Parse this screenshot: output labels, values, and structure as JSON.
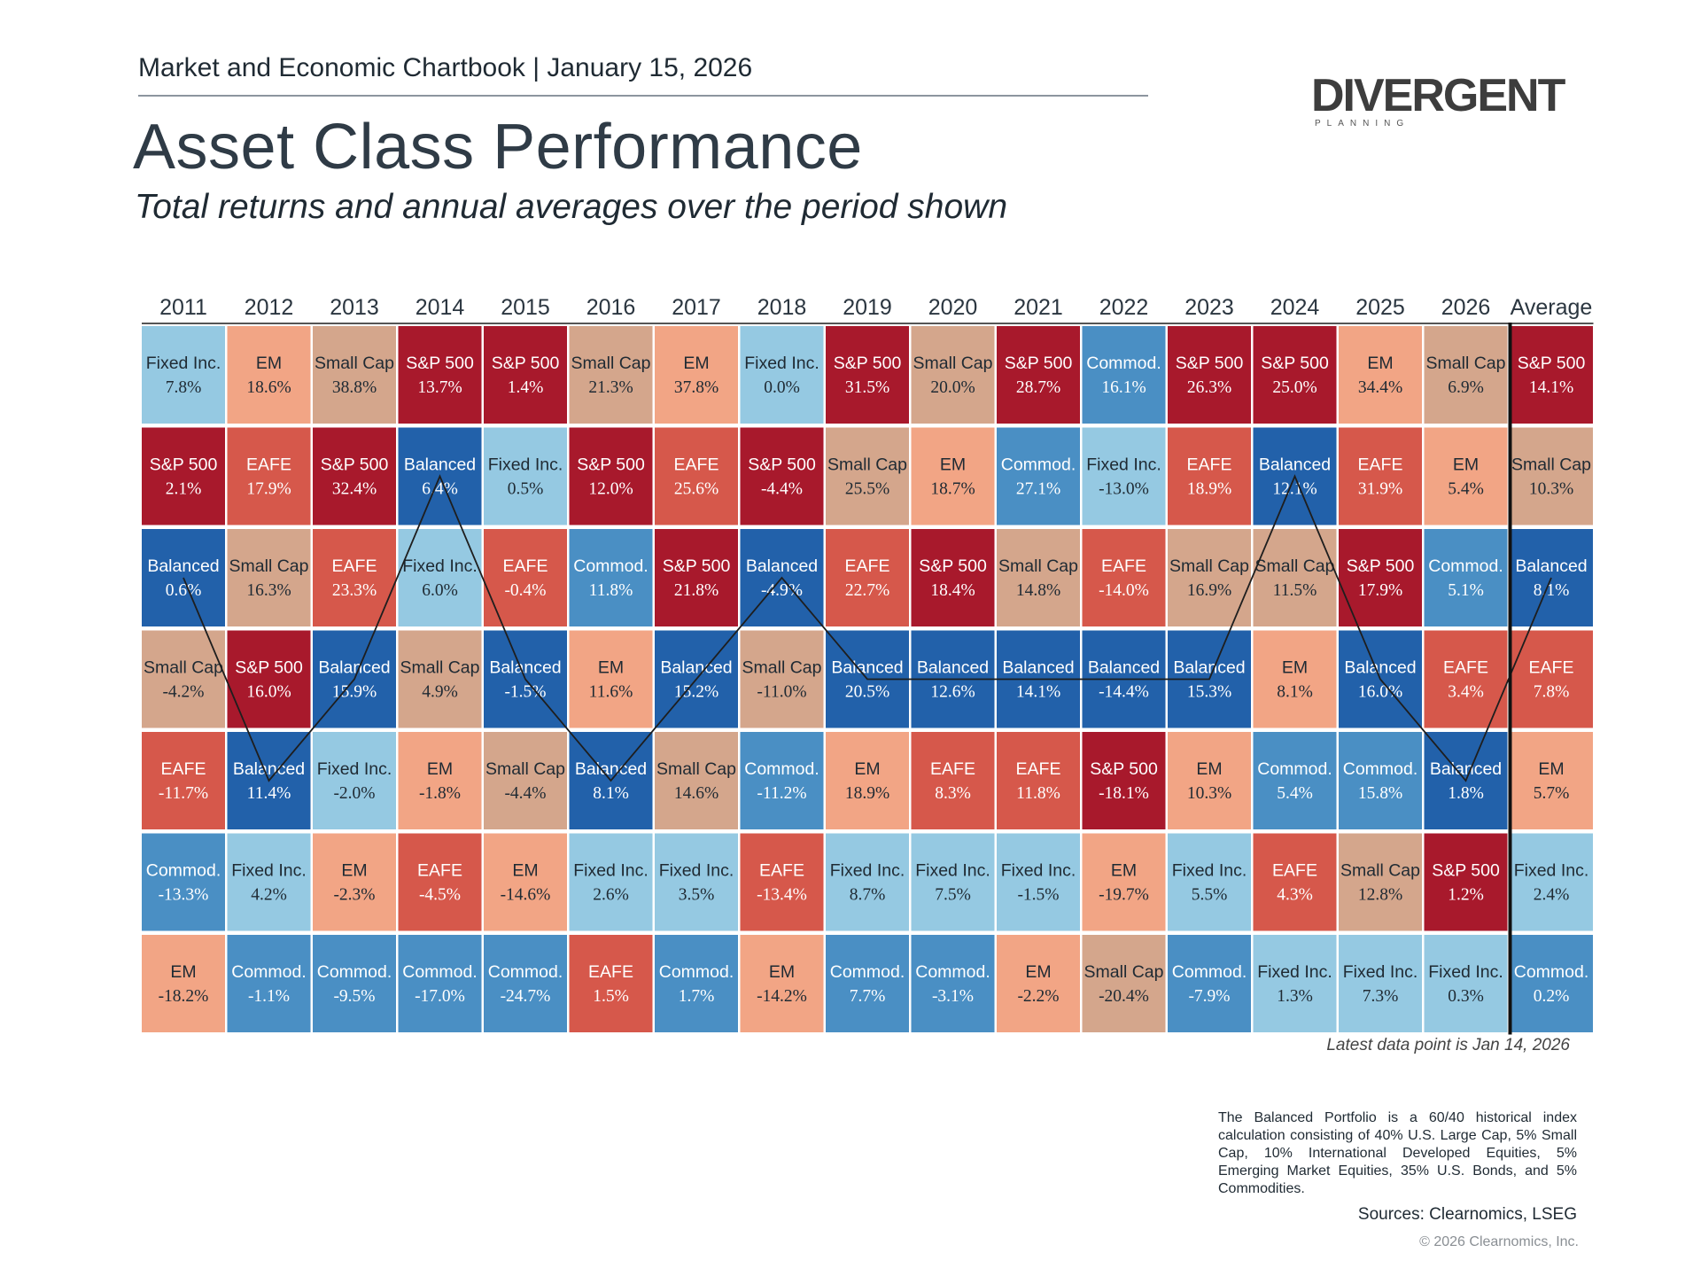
{
  "header": {
    "chartbook": "Market and Economic Chartbook | January 15, 2026",
    "title": "Asset Class Performance",
    "subtitle": "Total returns and annual averages over the period shown"
  },
  "logo": {
    "brand": "DIVERGENT",
    "tagline": "PLANNING"
  },
  "colors": {
    "S&P 500": "#a8192c",
    "EAFE": "#d6584b",
    "EM": "#f2a585",
    "Small Cap": "#d4a68c",
    "Fixed Inc.": "#95c9e2",
    "Commod.": "#4a8fc4",
    "Balanced": "#2261aa"
  },
  "chart_data": {
    "type": "table",
    "title": "Asset Class Performance",
    "columns": [
      "2011",
      "2012",
      "2013",
      "2014",
      "2015",
      "2016",
      "2017",
      "2018",
      "2019",
      "2020",
      "2021",
      "2022",
      "2023",
      "2024",
      "2025",
      "2026",
      "Average"
    ],
    "rows": [
      [
        [
          "Fixed Inc.",
          "7.8%"
        ],
        [
          "EM",
          "18.6%"
        ],
        [
          "Small Cap",
          "38.8%"
        ],
        [
          "S&P 500",
          "13.7%"
        ],
        [
          "S&P 500",
          "1.4%"
        ],
        [
          "Small Cap",
          "21.3%"
        ],
        [
          "EM",
          "37.8%"
        ],
        [
          "Fixed Inc.",
          "0.0%"
        ],
        [
          "S&P 500",
          "31.5%"
        ],
        [
          "Small Cap",
          "20.0%"
        ],
        [
          "S&P 500",
          "28.7%"
        ],
        [
          "Commod.",
          "16.1%"
        ],
        [
          "S&P 500",
          "26.3%"
        ],
        [
          "S&P 500",
          "25.0%"
        ],
        [
          "EM",
          "34.4%"
        ],
        [
          "Small Cap",
          "6.9%"
        ],
        [
          "S&P 500",
          "14.1%"
        ]
      ],
      [
        [
          "S&P 500",
          "2.1%"
        ],
        [
          "EAFE",
          "17.9%"
        ],
        [
          "S&P 500",
          "32.4%"
        ],
        [
          "Balanced",
          "6.4%"
        ],
        [
          "Fixed Inc.",
          "0.5%"
        ],
        [
          "S&P 500",
          "12.0%"
        ],
        [
          "EAFE",
          "25.6%"
        ],
        [
          "S&P 500",
          "-4.4%"
        ],
        [
          "Small Cap",
          "25.5%"
        ],
        [
          "EM",
          "18.7%"
        ],
        [
          "Commod.",
          "27.1%"
        ],
        [
          "Fixed Inc.",
          "-13.0%"
        ],
        [
          "EAFE",
          "18.9%"
        ],
        [
          "Balanced",
          "12.1%"
        ],
        [
          "EAFE",
          "31.9%"
        ],
        [
          "EM",
          "5.4%"
        ],
        [
          "Small Cap",
          "10.3%"
        ]
      ],
      [
        [
          "Balanced",
          "0.6%"
        ],
        [
          "Small Cap",
          "16.3%"
        ],
        [
          "EAFE",
          "23.3%"
        ],
        [
          "Fixed Inc.",
          "6.0%"
        ],
        [
          "EAFE",
          "-0.4%"
        ],
        [
          "Commod.",
          "11.8%"
        ],
        [
          "S&P 500",
          "21.8%"
        ],
        [
          "Balanced",
          "-4.9%"
        ],
        [
          "EAFE",
          "22.7%"
        ],
        [
          "S&P 500",
          "18.4%"
        ],
        [
          "Small Cap",
          "14.8%"
        ],
        [
          "EAFE",
          "-14.0%"
        ],
        [
          "Small Cap",
          "16.9%"
        ],
        [
          "Small Cap",
          "11.5%"
        ],
        [
          "S&P 500",
          "17.9%"
        ],
        [
          "Commod.",
          "5.1%"
        ],
        [
          "Balanced",
          "8.1%"
        ]
      ],
      [
        [
          "Small Cap",
          "-4.2%"
        ],
        [
          "S&P 500",
          "16.0%"
        ],
        [
          "Balanced",
          "15.9%"
        ],
        [
          "Small Cap",
          "4.9%"
        ],
        [
          "Balanced",
          "-1.5%"
        ],
        [
          "EM",
          "11.6%"
        ],
        [
          "Balanced",
          "15.2%"
        ],
        [
          "Small Cap",
          "-11.0%"
        ],
        [
          "Balanced",
          "20.5%"
        ],
        [
          "Balanced",
          "12.6%"
        ],
        [
          "Balanced",
          "14.1%"
        ],
        [
          "Balanced",
          "-14.4%"
        ],
        [
          "Balanced",
          "15.3%"
        ],
        [
          "EM",
          "8.1%"
        ],
        [
          "Balanced",
          "16.0%"
        ],
        [
          "EAFE",
          "3.4%"
        ],
        [
          "EAFE",
          "7.8%"
        ]
      ],
      [
        [
          "EAFE",
          "-11.7%"
        ],
        [
          "Balanced",
          "11.4%"
        ],
        [
          "Fixed Inc.",
          "-2.0%"
        ],
        [
          "EM",
          "-1.8%"
        ],
        [
          "Small Cap",
          "-4.4%"
        ],
        [
          "Balanced",
          "8.1%"
        ],
        [
          "Small Cap",
          "14.6%"
        ],
        [
          "Commod.",
          "-11.2%"
        ],
        [
          "EM",
          "18.9%"
        ],
        [
          "EAFE",
          "8.3%"
        ],
        [
          "EAFE",
          "11.8%"
        ],
        [
          "S&P 500",
          "-18.1%"
        ],
        [
          "EM",
          "10.3%"
        ],
        [
          "Commod.",
          "5.4%"
        ],
        [
          "Commod.",
          "15.8%"
        ],
        [
          "Balanced",
          "1.8%"
        ],
        [
          "EM",
          "5.7%"
        ]
      ],
      [
        [
          "Commod.",
          "-13.3%"
        ],
        [
          "Fixed Inc.",
          "4.2%"
        ],
        [
          "EM",
          "-2.3%"
        ],
        [
          "EAFE",
          "-4.5%"
        ],
        [
          "EM",
          "-14.6%"
        ],
        [
          "Fixed Inc.",
          "2.6%"
        ],
        [
          "Fixed Inc.",
          "3.5%"
        ],
        [
          "EAFE",
          "-13.4%"
        ],
        [
          "Fixed Inc.",
          "8.7%"
        ],
        [
          "Fixed Inc.",
          "7.5%"
        ],
        [
          "Fixed Inc.",
          "-1.5%"
        ],
        [
          "EM",
          "-19.7%"
        ],
        [
          "Fixed Inc.",
          "5.5%"
        ],
        [
          "EAFE",
          "4.3%"
        ],
        [
          "Small Cap",
          "12.8%"
        ],
        [
          "S&P 500",
          "1.2%"
        ],
        [
          "Fixed Inc.",
          "2.4%"
        ]
      ],
      [
        [
          "EM",
          "-18.2%"
        ],
        [
          "Commod.",
          "-1.1%"
        ],
        [
          "Commod.",
          "-9.5%"
        ],
        [
          "Commod.",
          "-17.0%"
        ],
        [
          "Commod.",
          "-24.7%"
        ],
        [
          "EAFE",
          "1.5%"
        ],
        [
          "Commod.",
          "1.7%"
        ],
        [
          "EM",
          "-14.2%"
        ],
        [
          "Commod.",
          "7.7%"
        ],
        [
          "Commod.",
          "-3.1%"
        ],
        [
          "EM",
          "-2.2%"
        ],
        [
          "Small Cap",
          "-20.4%"
        ],
        [
          "Commod.",
          "-7.9%"
        ],
        [
          "Fixed Inc.",
          "1.3%"
        ],
        [
          "Fixed Inc.",
          "7.3%"
        ],
        [
          "Fixed Inc.",
          "0.3%"
        ],
        [
          "Commod.",
          "0.2%"
        ]
      ]
    ],
    "balanced_line_rows": [
      2,
      4,
      3,
      1,
      3,
      4,
      3,
      2,
      3,
      3,
      3,
      3,
      3,
      1,
      3,
      4,
      2
    ]
  },
  "footer": {
    "latest": "Latest data point is Jan 14, 2026",
    "note": "The Balanced Portfolio is a 60/40 historical index calculation consisting of 40% U.S. Large Cap, 5% Small Cap, 10% International Developed Equities, 5% Emerging Market Equities, 35% U.S. Bonds, and 5% Commodities.",
    "sources": "Sources: Clearnomics, LSEG",
    "copyright": "© 2026 Clearnomics, Inc."
  }
}
